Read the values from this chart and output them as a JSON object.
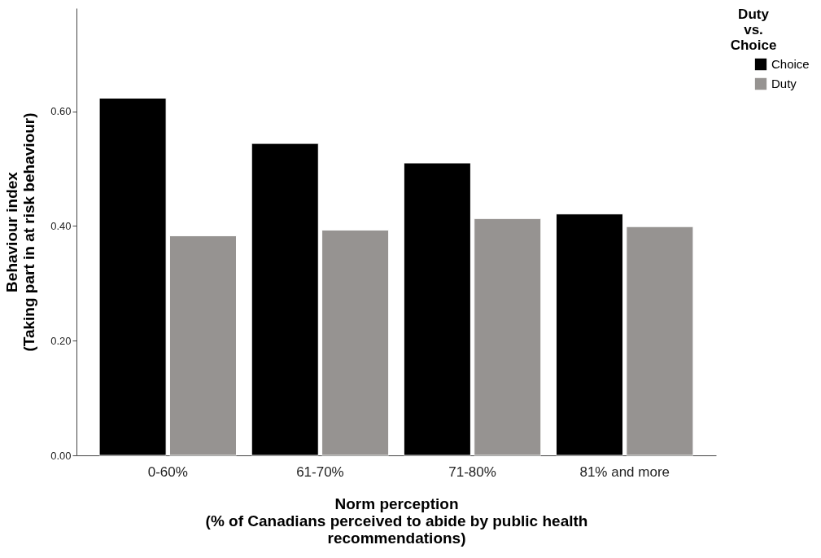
{
  "chart_data": {
    "type": "bar",
    "xlabel": "Norm perception\n(% of Canadians perceived to abide by public health\nrecommendations)",
    "ylabel": "Behaviour index\n(Taking part in at risk behaviour)",
    "legend_title": "Duty\nvs.\nChoice",
    "legend": "top right",
    "grid": false,
    "categories": [
      "0-60%",
      "61-70%",
      "71-80%",
      "81% and more"
    ],
    "series": [
      {
        "name": "Choice",
        "color": "#000000",
        "values": [
          0.623,
          0.544,
          0.51,
          0.421
        ]
      },
      {
        "name": "Duty",
        "color": "#969391",
        "values": [
          0.383,
          0.393,
          0.413,
          0.399
        ]
      }
    ],
    "ylim": [
      0,
      0.78
    ],
    "yticks": [
      {
        "value": 0,
        "label": "0.00"
      },
      {
        "value": 0.2,
        "label": "0.20"
      },
      {
        "value": 0.4,
        "label": "0.40"
      },
      {
        "value": 0.6,
        "label": "0.60"
      }
    ]
  }
}
